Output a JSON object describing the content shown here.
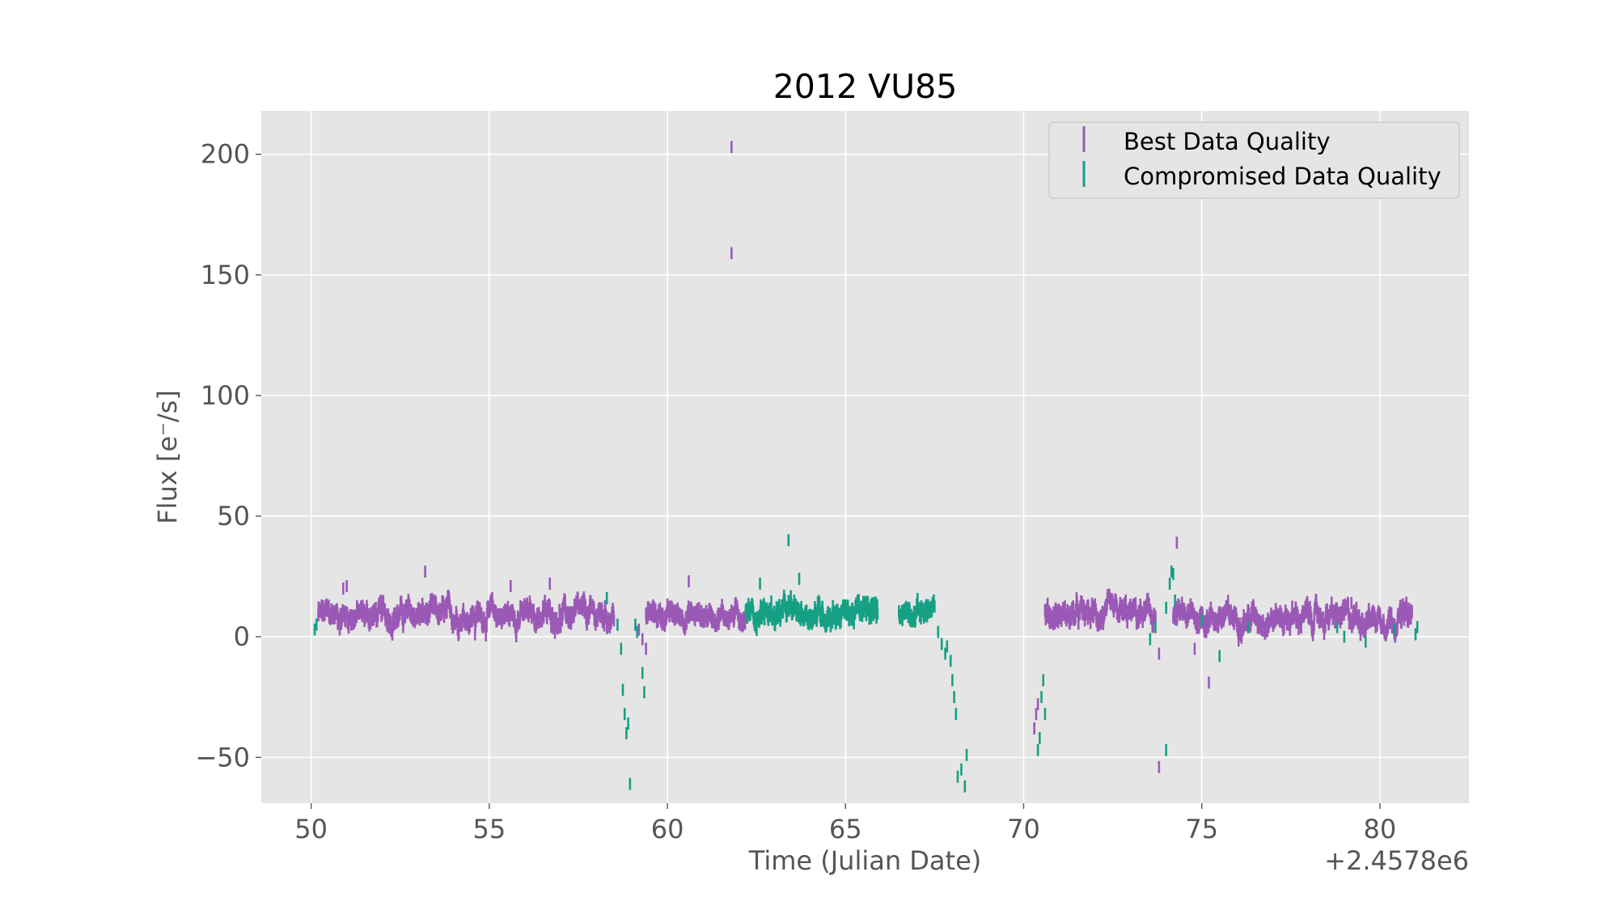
{
  "chart_data": {
    "type": "scatter",
    "title": "2012 VU85",
    "xlabel": "Time (Julian Date)",
    "ylabel": "Flux [e⁻/s]",
    "x_offset_label": "+2.4578e6",
    "xlim": [
      48.6,
      82.5
    ],
    "ylim": [
      -69,
      218
    ],
    "xticks": [
      50,
      55,
      60,
      65,
      70,
      75,
      80
    ],
    "yticks": [
      -50,
      0,
      50,
      100,
      150,
      200
    ],
    "ytick_labels": [
      "−50",
      "0",
      "50",
      "100",
      "150",
      "200"
    ],
    "grid": true,
    "legend_position": "top-right",
    "error_bar_halfwidth": 2.5,
    "series": [
      {
        "name": "Best Data Quality",
        "color": "#9b59b6",
        "segments": [
          {
            "x_start": 50.2,
            "x_end": 58.5,
            "mean": 9,
            "amp": 5
          },
          {
            "x_start": 59.4,
            "x_end": 62.2,
            "mean": 9,
            "amp": 4
          },
          {
            "x_start": 70.6,
            "x_end": 73.7,
            "mean": 9,
            "amp": 5
          },
          {
            "x_start": 74.2,
            "x_end": 80.9,
            "mean": 8,
            "amp": 5
          }
        ],
        "points": [
          {
            "x": 50.9,
            "y": 20
          },
          {
            "x": 51.0,
            "y": 21
          },
          {
            "x": 53.2,
            "y": 27
          },
          {
            "x": 55.6,
            "y": 21
          },
          {
            "x": 56.7,
            "y": 22
          },
          {
            "x": 54.6,
            "y": 1
          },
          {
            "x": 60.6,
            "y": 23
          },
          {
            "x": 61.8,
            "y": 203
          },
          {
            "x": 61.8,
            "y": 159
          },
          {
            "x": 59.3,
            "y": -1
          },
          {
            "x": 59.4,
            "y": -5
          },
          {
            "x": 59.2,
            "y": 3
          },
          {
            "x": 70.3,
            "y": -38
          },
          {
            "x": 70.35,
            "y": -32
          },
          {
            "x": 70.4,
            "y": -28
          },
          {
            "x": 73.8,
            "y": -54
          },
          {
            "x": 73.8,
            "y": -7
          },
          {
            "x": 74.3,
            "y": 39
          },
          {
            "x": 74.8,
            "y": -5
          },
          {
            "x": 75.2,
            "y": -19
          },
          {
            "x": 79.2,
            "y": 14
          }
        ]
      },
      {
        "name": "Compromised Data Quality",
        "color": "#16a085",
        "segments": [
          {
            "x_start": 62.2,
            "x_end": 65.9,
            "mean": 10,
            "amp": 5
          },
          {
            "x_start": 66.5,
            "x_end": 67.5,
            "mean": 11,
            "amp": 4
          }
        ],
        "points": [
          {
            "x": 50.1,
            "y": 3
          },
          {
            "x": 50.15,
            "y": 5
          },
          {
            "x": 58.3,
            "y": 16
          },
          {
            "x": 58.6,
            "y": 5
          },
          {
            "x": 58.7,
            "y": -5
          },
          {
            "x": 58.75,
            "y": -22
          },
          {
            "x": 58.8,
            "y": -32
          },
          {
            "x": 58.85,
            "y": -40
          },
          {
            "x": 58.9,
            "y": -36
          },
          {
            "x": 58.95,
            "y": -61
          },
          {
            "x": 59.1,
            "y": 5
          },
          {
            "x": 59.15,
            "y": 2
          },
          {
            "x": 59.3,
            "y": -15
          },
          {
            "x": 59.35,
            "y": -23
          },
          {
            "x": 63.4,
            "y": 40
          },
          {
            "x": 63.7,
            "y": 24
          },
          {
            "x": 62.6,
            "y": 22
          },
          {
            "x": 67.6,
            "y": 2
          },
          {
            "x": 67.7,
            "y": -3
          },
          {
            "x": 67.8,
            "y": -7
          },
          {
            "x": 67.85,
            "y": -4
          },
          {
            "x": 67.95,
            "y": -10
          },
          {
            "x": 68.0,
            "y": -18
          },
          {
            "x": 68.05,
            "y": -25
          },
          {
            "x": 68.1,
            "y": -32
          },
          {
            "x": 68.15,
            "y": -58
          },
          {
            "x": 68.25,
            "y": -55
          },
          {
            "x": 68.35,
            "y": -62
          },
          {
            "x": 68.4,
            "y": -49
          },
          {
            "x": 70.4,
            "y": -47
          },
          {
            "x": 70.45,
            "y": -42
          },
          {
            "x": 70.5,
            "y": -25
          },
          {
            "x": 70.55,
            "y": -18
          },
          {
            "x": 70.6,
            "y": -32
          },
          {
            "x": 73.55,
            "y": -1
          },
          {
            "x": 73.7,
            "y": 4
          },
          {
            "x": 74.0,
            "y": 12
          },
          {
            "x": 74.1,
            "y": 22
          },
          {
            "x": 74.15,
            "y": 27
          },
          {
            "x": 74.2,
            "y": 26
          },
          {
            "x": 74.25,
            "y": 15
          },
          {
            "x": 74.0,
            "y": -47
          },
          {
            "x": 75.0,
            "y": 7
          },
          {
            "x": 75.5,
            "y": -8
          },
          {
            "x": 76.3,
            "y": 4
          },
          {
            "x": 78.8,
            "y": 4
          },
          {
            "x": 79.0,
            "y": 0
          },
          {
            "x": 79.6,
            "y": -2
          },
          {
            "x": 80.4,
            "y": 3
          },
          {
            "x": 81.0,
            "y": 1
          },
          {
            "x": 81.05,
            "y": 4
          }
        ]
      }
    ]
  }
}
